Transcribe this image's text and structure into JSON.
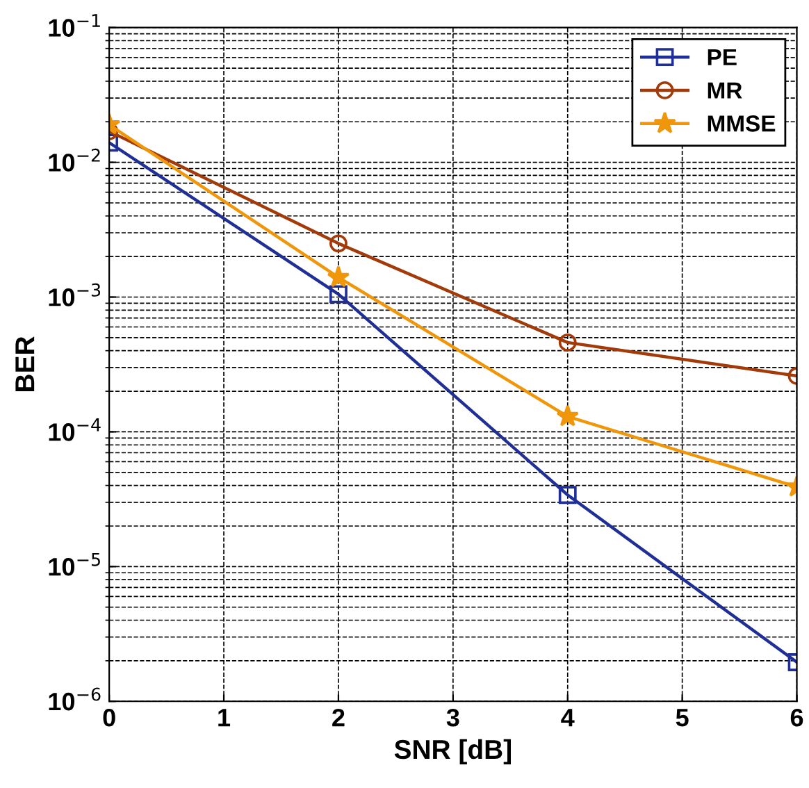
{
  "chart_data": {
    "type": "line",
    "xlabel": "SNR [dB]",
    "ylabel": "BER",
    "log": "y",
    "x": [
      0,
      2,
      4,
      6
    ],
    "series": [
      {
        "name": "PE",
        "color": "#1f2f96",
        "marker": "square",
        "values": [
          0.014,
          0.00105,
          3.4e-05,
          1.95e-06
        ]
      },
      {
        "name": "MR",
        "color": "#a23a0a",
        "marker": "circle",
        "values": [
          0.017,
          0.0025,
          0.00046,
          0.00026
        ]
      },
      {
        "name": "MMSE",
        "color": "#f0960a",
        "marker": "star",
        "values": [
          0.019,
          0.0014,
          0.00013,
          3.9e-05
        ]
      }
    ],
    "xlim": [
      0,
      6
    ],
    "xticks": [
      0,
      1,
      2,
      3,
      4,
      5,
      6
    ],
    "ylim": [
      1e-06,
      0.1
    ],
    "yticks": [
      {
        "value": 1e-06,
        "label": "10$^{−6}$"
      },
      {
        "value": 1e-05,
        "label": "10$^{−5}$"
      },
      {
        "value": 0.0001,
        "label": "10$^{−4}$"
      },
      {
        "value": 0.001,
        "label": "10$^{−3}$"
      },
      {
        "value": 0.01,
        "label": "10$^{−2}$"
      },
      {
        "value": 0.1,
        "label": "10$^{−1}$"
      }
    ],
    "grid": true,
    "legend": "top right",
    "line_style": "solid"
  }
}
